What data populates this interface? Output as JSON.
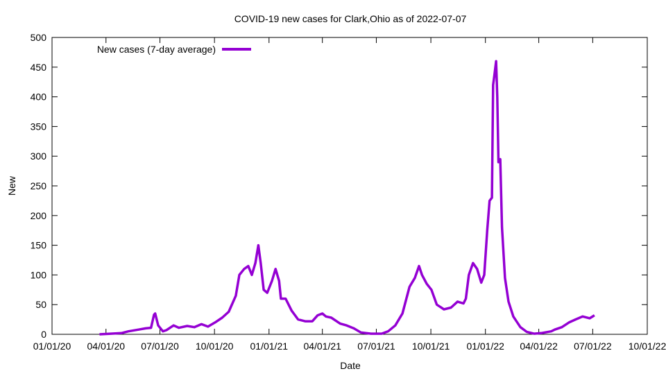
{
  "chart_data": {
    "type": "line",
    "title": "COVID-19 new cases for Clark,Ohio as of 2022-07-07",
    "xlabel": "Date",
    "ylabel": "New",
    "x_unit": "days since 01/01/20",
    "xlim": [
      0,
      1004
    ],
    "ylim": [
      0,
      500
    ],
    "x_ticks": [
      {
        "day": 0,
        "label": "01/01/20"
      },
      {
        "day": 91,
        "label": "04/01/20"
      },
      {
        "day": 182,
        "label": "07/01/20"
      },
      {
        "day": 274,
        "label": "10/01/20"
      },
      {
        "day": 366,
        "label": "01/01/21"
      },
      {
        "day": 456,
        "label": "04/01/21"
      },
      {
        "day": 547,
        "label": "07/01/21"
      },
      {
        "day": 639,
        "label": "10/01/21"
      },
      {
        "day": 731,
        "label": "01/01/22"
      },
      {
        "day": 821,
        "label": "04/01/22"
      },
      {
        "day": 912,
        "label": "07/01/22"
      },
      {
        "day": 1004,
        "label": "10/01/22"
      }
    ],
    "y_ticks": [
      0,
      50,
      100,
      150,
      200,
      250,
      300,
      350,
      400,
      450,
      500
    ],
    "grid": false,
    "legend_placement": "top-left",
    "series": [
      {
        "name": "New cases (7-day average)",
        "color": "#9400d3",
        "x": [
          80,
          99,
          117,
          129,
          146,
          158,
          167,
          172,
          174,
          179,
          187,
          193,
          205,
          214,
          228,
          240,
          252,
          263,
          275,
          287,
          298,
          310,
          316,
          324,
          331,
          337,
          343,
          348,
          352,
          357,
          363,
          371,
          377,
          383,
          386,
          394,
          404,
          415,
          427,
          439,
          448,
          456,
          462,
          471,
          486,
          497,
          509,
          521,
          538,
          556,
          567,
          579,
          591,
          603,
          612,
          619,
          624,
          632,
          640,
          649,
          661,
          673,
          684,
          694,
          698,
          703,
          710,
          717,
          724,
          729,
          734,
          738,
          742,
          744,
          746,
          749,
          751,
          753,
          756,
          759,
          764,
          770,
          778,
          790,
          801,
          813,
          825,
          842,
          848,
          860,
          872,
          883,
          895,
          907,
          915
        ],
        "values": [
          0,
          1,
          2,
          5,
          8,
          10,
          11,
          33,
          35,
          15,
          5,
          7,
          15,
          11,
          14,
          12,
          17,
          13,
          20,
          28,
          38,
          65,
          100,
          110,
          115,
          100,
          120,
          150,
          120,
          75,
          70,
          90,
          110,
          90,
          60,
          60,
          40,
          25,
          22,
          22,
          32,
          35,
          30,
          28,
          18,
          15,
          10,
          3,
          1,
          1,
          5,
          15,
          35,
          80,
          95,
          115,
          100,
          85,
          75,
          50,
          42,
          45,
          55,
          52,
          60,
          100,
          120,
          110,
          87,
          100,
          175,
          225,
          230,
          420,
          435,
          460,
          400,
          290,
          295,
          180,
          95,
          55,
          30,
          12,
          4,
          1,
          2,
          5,
          8,
          12,
          20,
          25,
          30,
          27,
          32
        ]
      }
    ]
  }
}
